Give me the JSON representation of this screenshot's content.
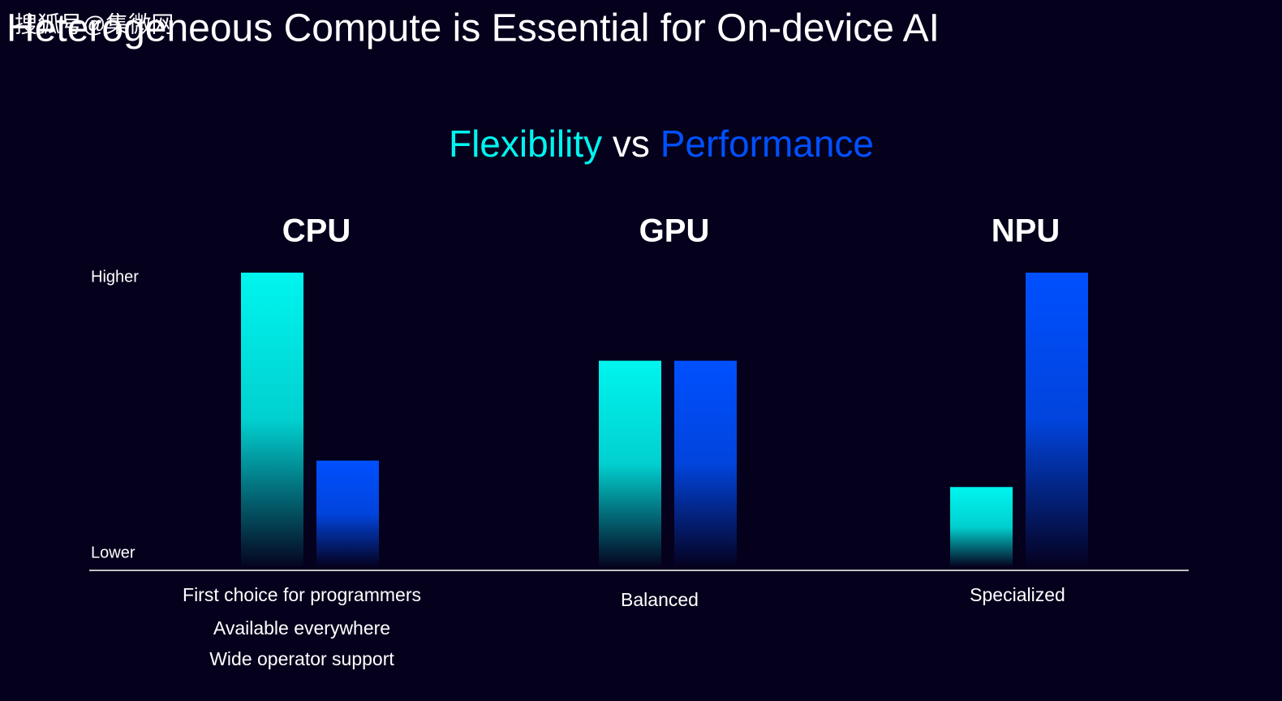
{
  "chart_data": {
    "type": "bar",
    "title": "Heterogeneous Compute is Essential for On-device AI",
    "watermark": "搜狐号@集微网",
    "legend_separator": "vs",
    "categories": [
      "CPU",
      "GPU",
      "NPU"
    ],
    "series": [
      {
        "name": "Flexibility",
        "color": "#00f5ef",
        "values": [
          100,
          70,
          27
        ]
      },
      {
        "name": "Performance",
        "color": "#0050ff",
        "values": [
          36,
          70,
          100
        ]
      }
    ],
    "ylim": [
      0,
      100
    ],
    "yticks": [
      {
        "value": 100,
        "label": "Higher"
      },
      {
        "value": 0,
        "label": "Lower"
      }
    ],
    "grid": false,
    "descriptions": [
      [
        "First choice for programmers",
        "Available everywhere",
        "Wide operator support"
      ],
      [
        "Balanced"
      ],
      [
        "Specialized"
      ]
    ]
  }
}
